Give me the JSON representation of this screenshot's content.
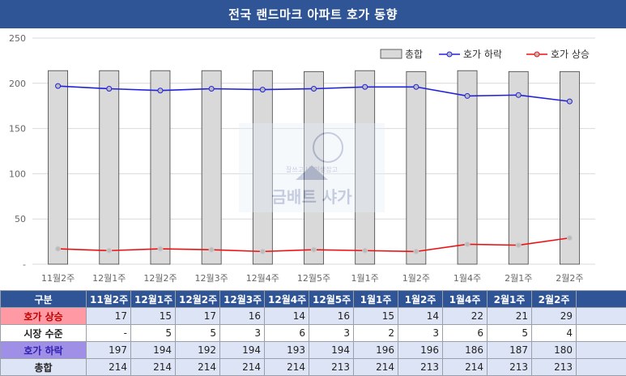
{
  "title": "전국 랜드마크 아파트 호가 동향",
  "watermark": {
    "text": "금배트 샤가",
    "caption": "잘쓰고 내 인생잡고"
  },
  "chart_data": {
    "type": "bar",
    "title": "전국 랜드마크 아파트 호가 동향",
    "categories": [
      "11월2주",
      "12월1주",
      "12월2주",
      "12월3주",
      "12월4주",
      "12월5주",
      "1월1주",
      "1월2주",
      "1월4주",
      "2월1주",
      "2월2주"
    ],
    "yticks": [
      "-",
      "50",
      "100",
      "150",
      "200",
      "250"
    ],
    "ylim": [
      0,
      250
    ],
    "grid": true,
    "legend_position": "top-right",
    "series": [
      {
        "name": "총합",
        "kind": "bar",
        "color": "#d9d9d9",
        "values": [
          214,
          214,
          214,
          214,
          214,
          213,
          214,
          213,
          214,
          213,
          213
        ]
      },
      {
        "name": "호가 하락",
        "kind": "line",
        "color": "#2222dd",
        "values": [
          197,
          194,
          192,
          194,
          193,
          194,
          196,
          196,
          186,
          187,
          180
        ]
      },
      {
        "name": "호가 상승",
        "kind": "line",
        "color": "#ee1111",
        "values": [
          17,
          15,
          17,
          16,
          14,
          16,
          15,
          14,
          22,
          21,
          29
        ]
      }
    ]
  },
  "table": {
    "header": "구분",
    "columns": [
      "11월2주",
      "12월1주",
      "12월2주",
      "12월3주",
      "12월4주",
      "12월5주",
      "1월1주",
      "1월2주",
      "1월4주",
      "2월1주",
      "2월2주"
    ],
    "rows": [
      {
        "label": "호가 상승",
        "values": [
          "17",
          "15",
          "17",
          "16",
          "14",
          "16",
          "15",
          "14",
          "22",
          "21",
          "29"
        ]
      },
      {
        "label": "시장 수준",
        "values": [
          "-",
          "5",
          "5",
          "3",
          "6",
          "3",
          "2",
          "3",
          "6",
          "5",
          "4"
        ]
      },
      {
        "label": "호가 하락",
        "values": [
          "197",
          "194",
          "192",
          "194",
          "193",
          "194",
          "196",
          "196",
          "186",
          "187",
          "180"
        ]
      },
      {
        "label": "총합",
        "values": [
          "214",
          "214",
          "214",
          "214",
          "214",
          "213",
          "214",
          "213",
          "214",
          "213",
          "213"
        ]
      }
    ]
  }
}
